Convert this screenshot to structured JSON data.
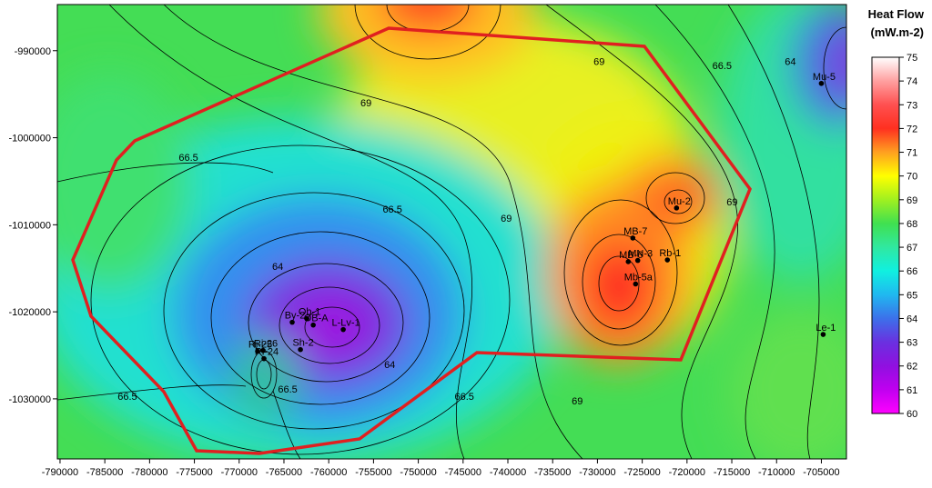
{
  "map": {
    "xlim": [
      -790300,
      -702200
    ],
    "ylim": [
      -1036900,
      -984700
    ],
    "xticks": [
      -790000,
      -785000,
      -780000,
      -775000,
      -770000,
      -765000,
      -760000,
      -755000,
      -750000,
      -745000,
      -740000,
      -735000,
      -730000,
      -725000,
      -720000,
      -715000,
      -710000,
      -705000
    ],
    "yticks": [
      -990000,
      -1000000,
      -1010000,
      -1020000,
      -1030000
    ],
    "wells": [
      {
        "name": "Mu-5",
        "x": -705000,
        "y": -993760
      },
      {
        "name": "Mu-2",
        "x": -721170,
        "y": -1008070
      },
      {
        "name": "MB-7",
        "x": -726050,
        "y": -1011520
      },
      {
        "name": "MB-6",
        "x": -726560,
        "y": -1014240
      },
      {
        "name": "MN-3",
        "x": -725500,
        "y": -1014100
      },
      {
        "name": "Mb-5a",
        "x": -725740,
        "y": -1016800
      },
      {
        "name": "Rb-1",
        "x": -722190,
        "y": -1014040
      },
      {
        "name": "Le-1",
        "x": -704800,
        "y": -1022600
      },
      {
        "name": "Ob-1",
        "x": -762450,
        "y": -1020780
      },
      {
        "name": "OB-A",
        "x": -761730,
        "y": -1021520
      },
      {
        "name": "L-Lv-1",
        "x": -758380,
        "y": -1022040
      },
      {
        "name": "By-2",
        "x": -764080,
        "y": -1021200
      },
      {
        "name": "Sh-2",
        "x": -763160,
        "y": -1024340
      },
      {
        "name": "Ri-26",
        "x": -767330,
        "y": -1024440
      },
      {
        "name": "Ri-25",
        "x": -767940,
        "y": -1024540
      },
      {
        "name": "Ri-24",
        "x": -767230,
        "y": -1025380
      }
    ],
    "contour_labels": [
      {
        "value": 69,
        "x": -755840,
        "y": -995950
      },
      {
        "value": 69,
        "x": -729810,
        "y": -991250
      },
      {
        "value": 69,
        "x": -740180,
        "y": -1009220
      },
      {
        "value": 69,
        "x": -714970,
        "y": -1007340
      },
      {
        "value": 69,
        "x": -732250,
        "y": -1030210
      },
      {
        "value": 66.5,
        "x": -775660,
        "y": -1002220
      },
      {
        "value": 66.5,
        "x": -752890,
        "y": -1008170
      },
      {
        "value": 66.5,
        "x": -716090,
        "y": -991670
      },
      {
        "value": 66.5,
        "x": -782480,
        "y": -1029690
      },
      {
        "value": 66.5,
        "x": -764580,
        "y": -1028850
      },
      {
        "value": 66.5,
        "x": -744860,
        "y": -1029690
      },
      {
        "value": 64,
        "x": -765700,
        "y": -1014750
      },
      {
        "value": 64,
        "x": -753190,
        "y": -1026030
      },
      {
        "value": 64,
        "x": -708460,
        "y": -991250
      }
    ],
    "legend": {
      "title": "Heat Flow",
      "unit": "(mW.m-2)",
      "ticks": [
        60,
        61,
        62,
        63,
        64,
        65,
        66,
        67,
        68,
        69,
        70,
        71,
        72,
        73,
        74,
        75
      ],
      "colors": [
        "#ff00ff",
        "#c000f0",
        "#9010e0",
        "#6a30e0",
        "#3c70ea",
        "#20b8f0",
        "#10f0e0",
        "#30e8a0",
        "#40e050",
        "#a0f020",
        "#ffff00",
        "#ffa020",
        "#ff3020",
        "#ff5050",
        "#ffa0a0",
        "#ffffff"
      ]
    }
  }
}
